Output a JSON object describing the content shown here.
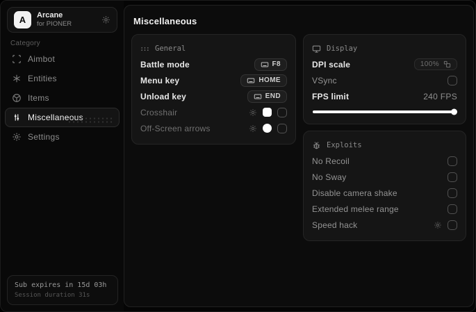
{
  "colors": {
    "background": "#000000",
    "panel": "#0c0c0c",
    "card": "#151515",
    "border": "#252525",
    "text_bright": "#e8e8e8",
    "text_dim": "#707070",
    "swatch": "#ffffff"
  },
  "icons": [
    "gear-icon",
    "scan-icon",
    "entities-icon",
    "items-icon",
    "sliders-icon",
    "keyboard-icon",
    "monitor-icon",
    "bug-icon",
    "grid-icon",
    "scale-icon"
  ],
  "app": {
    "name": "Arcane",
    "subtitle": "for PIONER",
    "logo_letter": "A"
  },
  "sidebar": {
    "category_label": "Category",
    "items": [
      {
        "label": "Aimbot",
        "icon": "scan-icon",
        "active": false
      },
      {
        "label": "Entities",
        "icon": "entities-icon",
        "active": false
      },
      {
        "label": "Items",
        "icon": "items-icon",
        "active": false
      },
      {
        "label": "Miscellaneous",
        "icon": "sliders-icon",
        "active": true
      },
      {
        "label": "Settings",
        "icon": "gear-icon",
        "active": false
      }
    ],
    "footer": {
      "sub_expiry": "Sub expires in 15d 03h",
      "session_duration": "Session duration 31s"
    }
  },
  "main": {
    "title": "Miscellaneous",
    "general": {
      "title": "General",
      "rows": [
        {
          "label": "Battle mode",
          "keybind": "F8"
        },
        {
          "label": "Menu key",
          "keybind": "HOME"
        },
        {
          "label": "Unload key",
          "keybind": "END"
        },
        {
          "label": "Crosshair",
          "swatch_shape": "square",
          "checked": false
        },
        {
          "label": "Off-Screen arrows",
          "swatch_shape": "circle",
          "checked": false
        }
      ]
    },
    "display": {
      "title": "Display",
      "dpi": {
        "label": "DPI scale",
        "value": "100%"
      },
      "vsync": {
        "label": "VSync",
        "checked": false
      },
      "fps": {
        "label": "FPS limit",
        "value": "240 FPS",
        "slider_percent": 100
      }
    },
    "exploits": {
      "title": "Exploits",
      "rows": [
        {
          "label": "No Recoil",
          "checked": false
        },
        {
          "label": "No Sway",
          "checked": false
        },
        {
          "label": "Disable camera shake",
          "checked": false
        },
        {
          "label": "Extended melee range",
          "checked": false
        },
        {
          "label": "Speed hack",
          "checked": false,
          "has_gear": true
        }
      ]
    }
  }
}
